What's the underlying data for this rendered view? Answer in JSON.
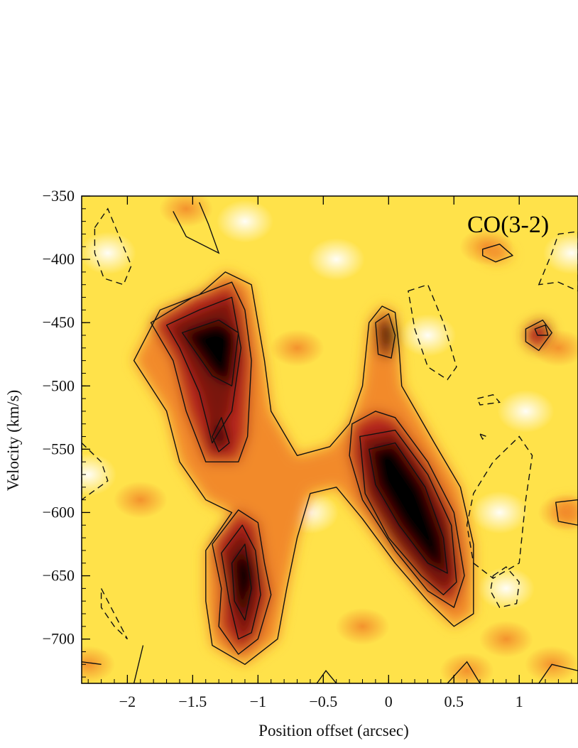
{
  "chart_data": {
    "type": "heatmap",
    "subtype": "position-velocity diagram with contours",
    "annotation": "CO(3-2)",
    "xlabel": "Position offset (arcsec)",
    "ylabel": "Velocity (km/s)",
    "xlim": [
      -2.35,
      1.45
    ],
    "ylim": [
      -350,
      -735
    ],
    "y_axis_inverted": true,
    "x_ticks": [
      -2,
      -1.5,
      -1,
      -0.5,
      0,
      0.5,
      1
    ],
    "x_tick_labels": [
      "−2",
      "−1.5",
      "−1",
      "−0.5",
      "0",
      "0.5",
      "1"
    ],
    "y_ticks": [
      -350,
      -400,
      -450,
      -500,
      -550,
      -600,
      -650,
      -700
    ],
    "y_tick_labels": [
      "−350",
      "−400",
      "−450",
      "−500",
      "−550",
      "−600",
      "−650",
      "−700"
    ],
    "colormap": [
      "#ffffff",
      "#ffe24a",
      "#f28a2a",
      "#b8261a",
      "#000000"
    ],
    "emission_components": [
      {
        "x": -1.3,
        "y": -470,
        "peak": 1.0
      },
      {
        "x": -1.3,
        "y": -540,
        "peak": 0.7
      },
      {
        "x": -1.1,
        "y": -650,
        "peak": 0.95
      },
      {
        "x": 0.15,
        "y": -590,
        "peak": 1.0
      },
      {
        "x": 0.0,
        "y": -460,
        "peak": 0.55
      }
    ],
    "contours_solid": [
      [
        [
          -1.95,
          -480
        ],
        [
          -1.75,
          -440
        ],
        [
          -1.45,
          -428
        ],
        [
          -1.25,
          -410
        ],
        [
          -1.05,
          -420
        ],
        [
          -1.0,
          -450
        ],
        [
          -0.95,
          -480
        ],
        [
          -0.9,
          -520
        ],
        [
          -0.7,
          -555
        ],
        [
          -0.45,
          -548
        ],
        [
          -0.3,
          -530
        ],
        [
          -0.2,
          -500
        ],
        [
          -0.15,
          -450
        ],
        [
          -0.05,
          -437
        ],
        [
          0.05,
          -442
        ],
        [
          0.08,
          -470
        ],
        [
          0.1,
          -500
        ],
        [
          0.35,
          -545
        ],
        [
          0.55,
          -580
        ],
        [
          0.65,
          -625
        ],
        [
          0.65,
          -680
        ],
        [
          0.5,
          -690
        ],
        [
          0.3,
          -670
        ],
        [
          0.05,
          -640
        ],
        [
          -0.2,
          -605
        ],
        [
          -0.4,
          -580
        ],
        [
          -0.6,
          -585
        ],
        [
          -0.7,
          -620
        ],
        [
          -0.78,
          -660
        ],
        [
          -0.85,
          -700
        ],
        [
          -1.1,
          -720
        ],
        [
          -1.35,
          -705
        ],
        [
          -1.4,
          -670
        ],
        [
          -1.4,
          -630
        ],
        [
          -1.2,
          -600
        ],
        [
          -1.4,
          -590
        ],
        [
          -1.6,
          -560
        ],
        [
          -1.7,
          -520
        ]
      ],
      [
        [
          -1.82,
          -450
        ],
        [
          -1.5,
          -430
        ],
        [
          -1.2,
          -418
        ],
        [
          -1.1,
          -440
        ],
        [
          -1.05,
          -480
        ],
        [
          -1.08,
          -540
        ],
        [
          -1.15,
          -560
        ],
        [
          -1.4,
          -560
        ],
        [
          -1.55,
          -520
        ],
        [
          -1.65,
          -480
        ]
      ],
      [
        [
          -1.7,
          -452
        ],
        [
          -1.45,
          -440
        ],
        [
          -1.2,
          -430
        ],
        [
          -1.13,
          -470
        ],
        [
          -1.2,
          -520
        ],
        [
          -1.35,
          -545
        ],
        [
          -1.45,
          -505
        ],
        [
          -1.6,
          -470
        ]
      ],
      [
        [
          -1.58,
          -458
        ],
        [
          -1.3,
          -448
        ],
        [
          -1.15,
          -458
        ],
        [
          -1.2,
          -500
        ],
        [
          -1.35,
          -492
        ]
      ],
      [
        [
          -1.35,
          -540
        ],
        [
          -1.28,
          -525
        ],
        [
          -1.22,
          -545
        ],
        [
          -1.3,
          -552
        ]
      ],
      [
        [
          -1.35,
          -625
        ],
        [
          -1.15,
          -598
        ],
        [
          -1.0,
          -608
        ],
        [
          -0.95,
          -640
        ],
        [
          -0.9,
          -665
        ],
        [
          -1.0,
          -700
        ],
        [
          -1.15,
          -712
        ],
        [
          -1.3,
          -690
        ],
        [
          -1.28,
          -660
        ]
      ],
      [
        [
          -1.28,
          -632
        ],
        [
          -1.12,
          -610
        ],
        [
          -1.02,
          -630
        ],
        [
          -0.98,
          -665
        ],
        [
          -1.05,
          -695
        ],
        [
          -1.15,
          -700
        ],
        [
          -1.22,
          -670
        ]
      ],
      [
        [
          -1.2,
          -640
        ],
        [
          -1.1,
          -625
        ],
        [
          -1.05,
          -660
        ],
        [
          -1.1,
          -685
        ],
        [
          -1.18,
          -670
        ]
      ],
      [
        [
          -0.28,
          -530
        ],
        [
          -0.1,
          -520
        ],
        [
          0.05,
          -525
        ],
        [
          0.3,
          -560
        ],
        [
          0.5,
          -600
        ],
        [
          0.58,
          -650
        ],
        [
          0.5,
          -675
        ],
        [
          0.3,
          -662
        ],
        [
          0.05,
          -630
        ],
        [
          -0.2,
          -590
        ],
        [
          -0.3,
          -555
        ]
      ],
      [
        [
          -0.22,
          -540
        ],
        [
          0.05,
          -535
        ],
        [
          0.3,
          -570
        ],
        [
          0.48,
          -610
        ],
        [
          0.52,
          -655
        ],
        [
          0.42,
          -665
        ],
        [
          0.25,
          -650
        ],
        [
          0.0,
          -620
        ],
        [
          -0.18,
          -585
        ]
      ],
      [
        [
          -0.15,
          -550
        ],
        [
          0.05,
          -545
        ],
        [
          0.28,
          -580
        ],
        [
          0.42,
          -620
        ],
        [
          0.45,
          -648
        ],
        [
          0.3,
          -640
        ],
        [
          0.08,
          -610
        ],
        [
          -0.1,
          -578
        ]
      ],
      [
        [
          -0.1,
          -450
        ],
        [
          0.0,
          -443
        ],
        [
          0.05,
          -460
        ],
        [
          0.02,
          -478
        ],
        [
          -0.08,
          -475
        ]
      ],
      [
        [
          1.05,
          -455
        ],
        [
          1.18,
          -448
        ],
        [
          1.25,
          -458
        ],
        [
          1.15,
          -472
        ],
        [
          1.05,
          -465
        ]
      ],
      [
        [
          1.12,
          -455
        ],
        [
          1.2,
          -452
        ],
        [
          1.22,
          -460
        ],
        [
          1.14,
          -460
        ]
      ],
      [
        [
          0.72,
          -392
        ],
        [
          0.85,
          -388
        ],
        [
          0.95,
          -397
        ],
        [
          0.82,
          -402
        ],
        [
          0.72,
          -397
        ]
      ],
      [
        [
          1.28,
          -592
        ],
        [
          1.45,
          -590
        ],
        [
          1.45,
          -610
        ],
        [
          1.3,
          -607
        ]
      ]
    ],
    "contours_dashed": [
      [
        [
          -2.25,
          -375
        ],
        [
          -2.15,
          -360
        ],
        [
          -2.05,
          -385
        ],
        [
          -1.97,
          -405
        ],
        [
          -2.03,
          -420
        ],
        [
          -2.18,
          -415
        ],
        [
          -2.25,
          -395
        ]
      ],
      [
        [
          0.15,
          -425
        ],
        [
          0.3,
          -420
        ],
        [
          0.42,
          -450
        ],
        [
          0.52,
          -485
        ],
        [
          0.45,
          -495
        ],
        [
          0.3,
          -485
        ],
        [
          0.2,
          -455
        ]
      ],
      [
        [
          0.65,
          -640
        ],
        [
          0.8,
          -652
        ],
        [
          1.0,
          -640
        ],
        [
          1.05,
          -590
        ],
        [
          1.1,
          -555
        ],
        [
          1.0,
          -540
        ],
        [
          0.8,
          -560
        ],
        [
          0.65,
          -585
        ],
        [
          0.6,
          -610
        ]
      ],
      [
        [
          0.8,
          -650
        ],
        [
          0.9,
          -643
        ],
        [
          1.0,
          -655
        ],
        [
          0.98,
          -672
        ],
        [
          0.85,
          -675
        ],
        [
          0.78,
          -662
        ]
      ],
      [
        [
          1.15,
          -420
        ],
        [
          1.25,
          -395
        ],
        [
          1.3,
          -380
        ],
        [
          1.45,
          -378
        ],
        [
          1.45,
          -425
        ],
        [
          1.3,
          -418
        ]
      ],
      [
        [
          -2.35,
          -545
        ],
        [
          -2.2,
          -560
        ],
        [
          -2.15,
          -575
        ],
        [
          -2.35,
          -590
        ]
      ],
      [
        [
          -2.2,
          -660
        ],
        [
          -2.1,
          -680
        ],
        [
          -2.0,
          -700
        ],
        [
          -2.1,
          -690
        ],
        [
          -2.2,
          -675
        ]
      ],
      [
        [
          0.68,
          -510
        ],
        [
          0.8,
          -507
        ],
        [
          0.85,
          -513
        ],
        [
          0.7,
          -515
        ]
      ],
      [
        [
          0.7,
          -538
        ],
        [
          0.75,
          -540
        ],
        [
          0.72,
          -542
        ]
      ]
    ],
    "contours_open": [
      [
        [
          -1.65,
          -362
        ],
        [
          -1.55,
          -382
        ],
        [
          -1.3,
          -395
        ],
        [
          -1.38,
          -372
        ],
        [
          -1.45,
          -355
        ]
      ],
      [
        [
          -2.35,
          -718
        ],
        [
          -2.2,
          -720
        ]
      ],
      [
        [
          -1.88,
          -705
        ],
        [
          -1.95,
          -735
        ]
      ],
      [
        [
          0.45,
          -735
        ],
        [
          0.6,
          -718
        ],
        [
          0.7,
          -735
        ]
      ],
      [
        [
          1.15,
          -735
        ],
        [
          1.25,
          -720
        ],
        [
          1.45,
          -725
        ]
      ],
      [
        [
          -0.55,
          -735
        ],
        [
          -0.48,
          -725
        ],
        [
          -0.4,
          -735
        ]
      ]
    ]
  }
}
